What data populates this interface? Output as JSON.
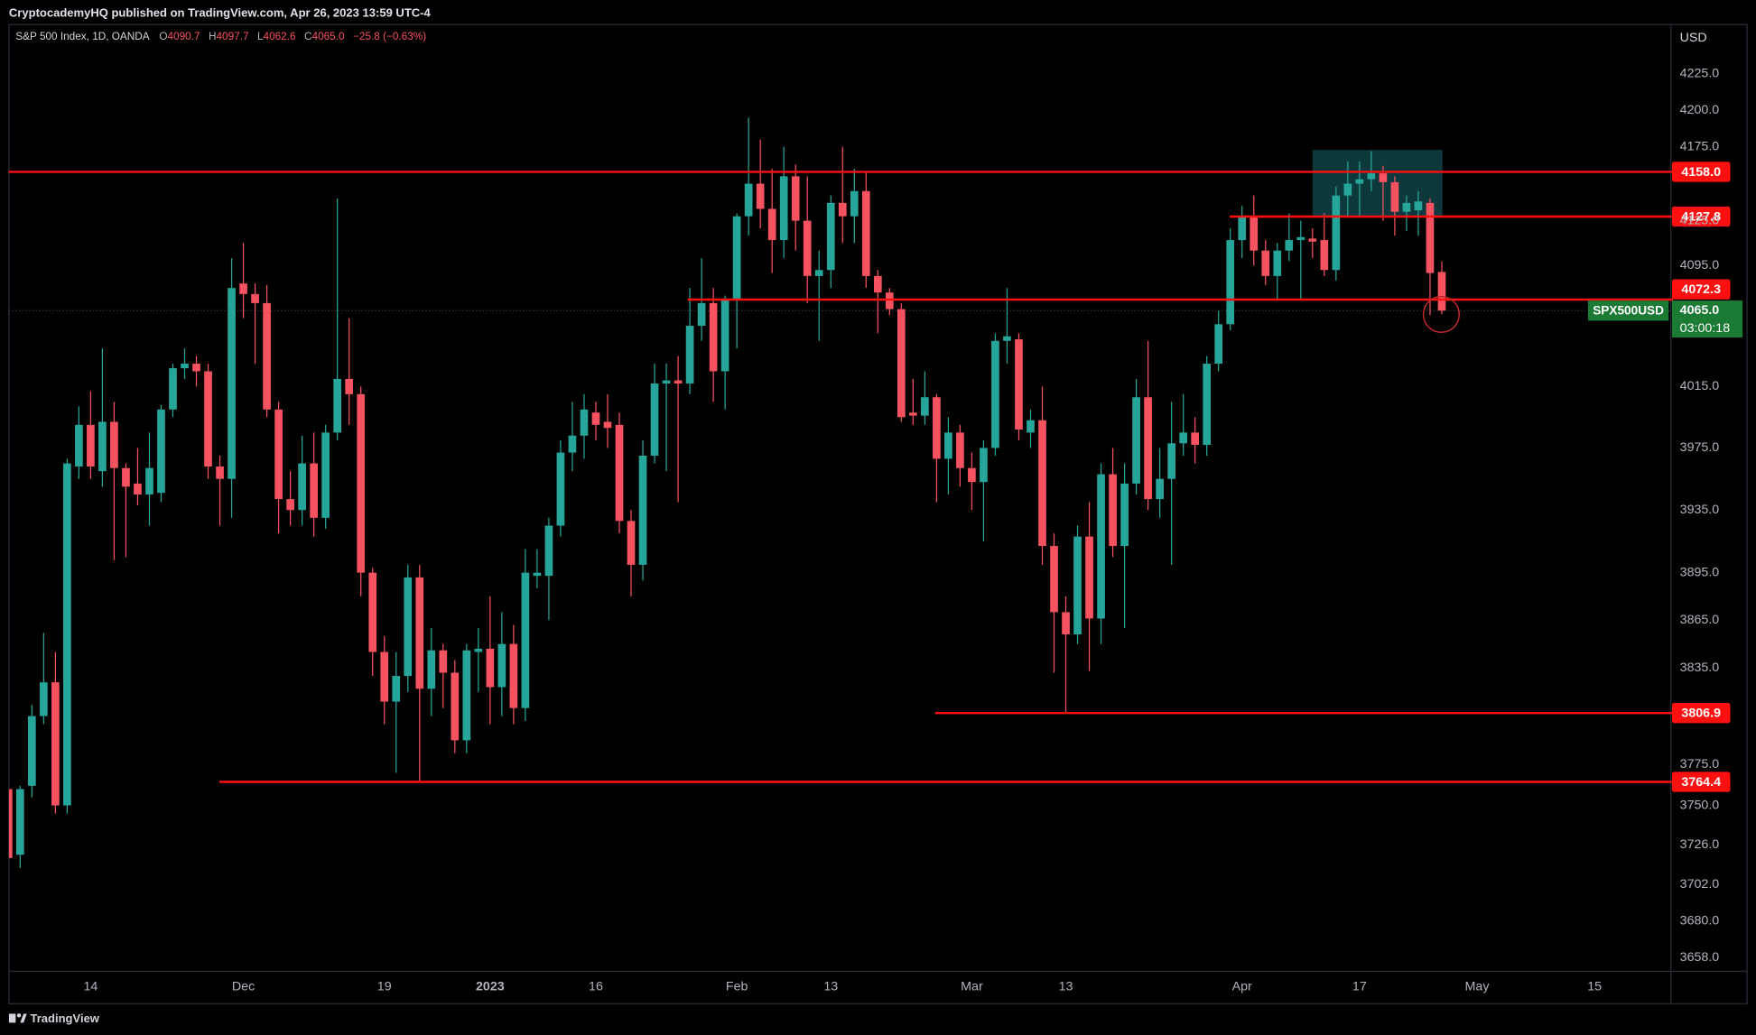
{
  "header": {
    "publisher": "CryptocademyHQ published on TradingView.com, Apr 26, 2023 13:59 UTC-4",
    "brand": "TradingView"
  },
  "chart_data": {
    "type": "candlestick",
    "title": "S&P 500 Index, 1D, OANDA",
    "legend_fields": [
      {
        "key": "O",
        "value": "4090.7"
      },
      {
        "key": "H",
        "value": "4097.7"
      },
      {
        "key": "L",
        "value": "4062.6"
      },
      {
        "key": "C",
        "value": "4065.0"
      }
    ],
    "change": "−25.8 (−0.63%)",
    "y_unit": "USD",
    "log_scale": true,
    "grid": false,
    "ylim": [
      3650,
      4259
    ],
    "yticks": [
      {
        "value": 4225,
        "label": "4225.0"
      },
      {
        "value": 4200,
        "label": "4200.0"
      },
      {
        "value": 4175,
        "label": "4175.0"
      },
      {
        "value": 4125,
        "label": "4125.0"
      },
      {
        "value": 4095,
        "label": "4095.0"
      },
      {
        "value": 4015,
        "label": "4015.0"
      },
      {
        "value": 3975,
        "label": "3975.0"
      },
      {
        "value": 3935,
        "label": "3935.0"
      },
      {
        "value": 3895,
        "label": "3895.0"
      },
      {
        "value": 3865,
        "label": "3865.0"
      },
      {
        "value": 3835,
        "label": "3835.0"
      },
      {
        "value": 3775,
        "label": "3775.0"
      },
      {
        "value": 3750,
        "label": "3750.0"
      },
      {
        "value": 3726,
        "label": "3726.0"
      },
      {
        "value": 3702,
        "label": "3702.0"
      },
      {
        "value": 3680,
        "label": "3680.0"
      },
      {
        "value": 3658,
        "label": "3658.0"
      }
    ],
    "categories": [
      null,
      null,
      null,
      null,
      null,
      null,
      null,
      "14",
      null,
      null,
      null,
      null,
      null,
      null,
      null,
      null,
      null,
      null,
      null,
      null,
      "Dec",
      null,
      null,
      null,
      null,
      null,
      null,
      null,
      null,
      null,
      null,
      null,
      "19",
      null,
      null,
      null,
      null,
      null,
      null,
      null,
      null,
      "2023",
      null,
      null,
      null,
      null,
      null,
      null,
      null,
      null,
      "16",
      null,
      null,
      null,
      null,
      null,
      null,
      null,
      null,
      null,
      null,
      null,
      "Feb",
      null,
      null,
      null,
      null,
      null,
      null,
      null,
      "13",
      null,
      null,
      null,
      null,
      null,
      null,
      null,
      null,
      null,
      null,
      null,
      "Mar",
      null,
      null,
      null,
      null,
      null,
      null,
      null,
      "13",
      null,
      null,
      null,
      null,
      null,
      null,
      null,
      null,
      null,
      null,
      null,
      null,
      null,
      null,
      "Apr",
      null,
      null,
      null,
      null,
      null,
      null,
      null,
      null,
      null,
      "17",
      null,
      null,
      null,
      null,
      null,
      null,
      null,
      null,
      null,
      "May",
      null,
      null,
      null,
      null,
      null,
      null,
      null,
      null,
      null,
      "15",
      null,
      null,
      null,
      null,
      null,
      null
    ],
    "up_color": "#26a69a",
    "down_color": "#f7525f",
    "level_color": "#ff1010",
    "current_color": "#1b7a33",
    "series": [
      {
        "name": "SPX500USD",
        "open": [
          3760,
          3720,
          3762,
          3805,
          3826,
          3750,
          3963,
          3990,
          3960,
          3992,
          3962,
          3952,
          3945,
          3946,
          4000,
          4027,
          4030,
          4025,
          3963,
          3955,
          4083,
          4076,
          4070,
          4000,
          3942,
          3935,
          3965,
          3930,
          3985,
          4020,
          4010,
          3895,
          3845,
          3814,
          3830,
          3892,
          3822,
          3846,
          3832,
          3790,
          3845,
          3847,
          3823,
          3850,
          3810,
          3893,
          3893,
          3925,
          3972,
          3983,
          3998,
          3992,
          3990,
          3928,
          3900,
          3970,
          4017,
          4019,
          4017,
          4055,
          4070,
          4025,
          4072,
          4128,
          4150,
          4133,
          4112,
          4155,
          4125,
          4088,
          4092,
          4137,
          4128,
          4145,
          4088,
          4077,
          4066,
          3998,
          3996,
          4008,
          3968,
          3985,
          3962,
          3953,
          3975,
          4045,
          4046,
          3985,
          3993,
          3912,
          3870,
          3856,
          3918,
          3866,
          3958,
          3912,
          3952,
          4008,
          3942,
          3955,
          3978,
          3985,
          3977,
          4030,
          4056,
          4112,
          4128,
          4105,
          4088,
          4105,
          4112,
          4113,
          4112,
          4092,
          4142,
          4150,
          4153,
          4157,
          4151,
          4131,
          4132,
          4137,
          4090.7,
          null,
          null,
          null,
          null,
          null,
          null,
          null,
          null,
          null,
          null,
          null,
          null,
          null,
          null,
          null,
          null,
          null,
          null,
          null
        ],
        "high": [
          3765,
          3762,
          3812,
          3857,
          3845,
          3968,
          4002,
          4012,
          4040,
          4005,
          3965,
          3975,
          3985,
          4003,
          4030,
          4040,
          4035,
          4030,
          3970,
          4100,
          4110,
          4083,
          4082,
          4005,
          3960,
          3983,
          3985,
          3990,
          4140,
          4060,
          4015,
          3898,
          3855,
          3845,
          3900,
          3900,
          3860,
          3850,
          3840,
          3850,
          3860,
          3880,
          3870,
          3862,
          3910,
          3910,
          3930,
          3980,
          4005,
          4010,
          4005,
          4010,
          3998,
          3935,
          3980,
          4030,
          4030,
          4035,
          4080,
          4100,
          4080,
          4075,
          4130,
          4195,
          4180,
          4160,
          4175,
          4163,
          4155,
          4105,
          4142,
          4175,
          4160,
          4158,
          4092,
          4080,
          4070,
          4020,
          4025,
          4010,
          3995,
          3990,
          3972,
          3980,
          4050,
          4080,
          4050,
          4000,
          4015,
          3920,
          3880,
          3925,
          3940,
          3965,
          3975,
          3965,
          4020,
          4045,
          3975,
          4005,
          4010,
          3995,
          4035,
          4065,
          4120,
          4135,
          4142,
          4112,
          4110,
          4130,
          4125,
          4120,
          4130,
          4148,
          4165,
          4165,
          4172,
          4162,
          4155,
          4142,
          4145,
          4140,
          4097.7,
          null,
          null,
          null,
          null,
          null,
          null,
          null,
          null,
          null,
          null,
          null,
          null,
          null,
          null,
          null,
          null,
          null,
          null,
          null
        ],
        "low": [
          3706,
          3712,
          3755,
          3800,
          3745,
          3745,
          3955,
          3955,
          3950,
          3903,
          3905,
          3938,
          3925,
          3940,
          3995,
          4020,
          4015,
          3955,
          3925,
          3930,
          4060,
          4030,
          3995,
          3920,
          3925,
          3925,
          3918,
          3923,
          3980,
          3990,
          3880,
          3830,
          3800,
          3770,
          3820,
          3764,
          3805,
          3810,
          3782,
          3782,
          3820,
          3800,
          3805,
          3800,
          3802,
          3885,
          3865,
          3918,
          3960,
          3968,
          3980,
          3975,
          3920,
          3880,
          3890,
          3965,
          3960,
          3940,
          4010,
          4045,
          4005,
          4000,
          4040,
          4115,
          4120,
          4090,
          4100,
          4105,
          4070,
          4045,
          4080,
          4110,
          4110,
          4080,
          4050,
          4062,
          3992,
          3990,
          3990,
          3940,
          3945,
          3950,
          3935,
          3915,
          3970,
          4030,
          3980,
          3975,
          3900,
          3832,
          3807,
          3850,
          3833,
          3850,
          3905,
          3860,
          3945,
          3935,
          3930,
          3900,
          3970,
          3965,
          3970,
          4025,
          4052,
          4100,
          4095,
          4082,
          4072,
          4098,
          4072,
          4100,
          4088,
          4085,
          4128,
          4128,
          4145,
          4125,
          4115,
          4118,
          4115,
          4062,
          4062.6,
          null,
          null,
          null,
          null,
          null,
          null,
          null,
          null,
          null,
          null,
          null,
          null,
          null,
          null,
          null,
          null,
          null,
          null,
          null
        ],
        "close": [
          3718,
          3760,
          3805,
          3826,
          3750,
          3965,
          3990,
          3963,
          3992,
          3962,
          3950,
          3945,
          3962,
          4000,
          4027,
          4030,
          4025,
          3963,
          3955,
          4080,
          4076,
          4070,
          4000,
          3942,
          3935,
          3965,
          3930,
          3985,
          4020,
          4010,
          3895,
          3845,
          3814,
          3830,
          3892,
          3822,
          3846,
          3832,
          3790,
          3846,
          3847,
          3823,
          3850,
          3810,
          3895,
          3895,
          3925,
          3972,
          3983,
          4000,
          3990,
          3988,
          3928,
          3900,
          3970,
          4017,
          4019,
          4017,
          4055,
          4070,
          4025,
          4072,
          4128,
          4150,
          4133,
          4112,
          4155,
          4125,
          4088,
          4092,
          4137,
          4128,
          4145,
          4088,
          4077,
          4066,
          3995,
          3996,
          4008,
          3968,
          3985,
          3962,
          3953,
          3975,
          4045,
          4048,
          3987,
          3993,
          3912,
          3870,
          3856,
          3918,
          3866,
          3958,
          3912,
          3952,
          4008,
          3942,
          3955,
          3978,
          3985,
          3977,
          4030,
          4056,
          4112,
          4128,
          4105,
          4088,
          4105,
          4112,
          4114,
          4111,
          4092,
          4142,
          4150,
          4153,
          4157,
          4151,
          4131,
          4137,
          4138,
          4090,
          4065.0,
          null,
          null,
          null,
          null,
          null,
          null,
          null,
          null,
          null,
          null,
          null,
          null,
          null,
          null,
          null,
          null,
          null,
          null,
          null
        ]
      }
    ],
    "current_price": {
      "value": 4065.0,
      "label": "4065.0",
      "countdown": "03:00:18"
    },
    "levels": [
      {
        "value": 4158.0,
        "label": "4158.0"
      },
      {
        "value": 4127.8,
        "label": "4127.8"
      },
      {
        "value": 4072.3,
        "label": "4072.3"
      },
      {
        "value": 3806.9,
        "label": "3806.9"
      },
      {
        "value": 3764.4,
        "label": "3764.4"
      }
    ]
  }
}
